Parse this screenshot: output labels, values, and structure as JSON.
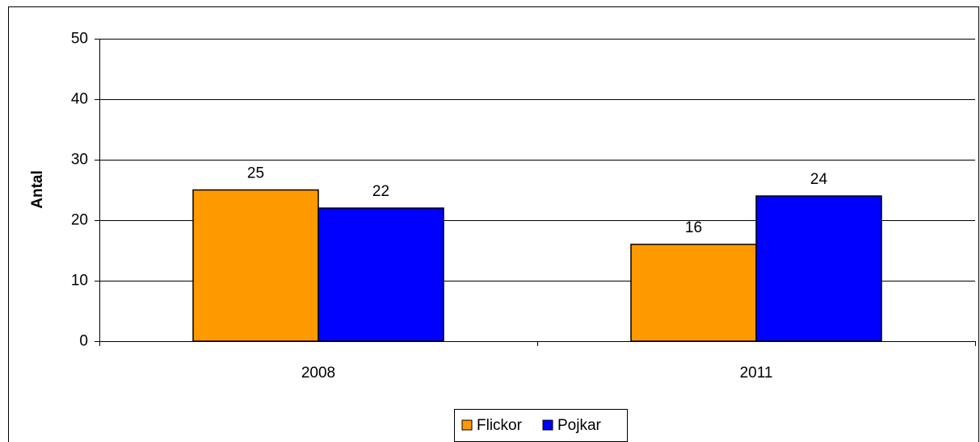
{
  "chart_data": {
    "type": "bar",
    "y_label": "Antal",
    "categories": [
      "2008",
      "2011"
    ],
    "series": [
      {
        "name": "Flickor",
        "color": "#ff9900",
        "values": [
          25,
          16
        ]
      },
      {
        "name": "Pojkar",
        "color": "#0000ff",
        "values": [
          22,
          24
        ]
      }
    ],
    "ylim": [
      0,
      50
    ],
    "yticks": [
      0,
      10,
      20,
      30,
      40,
      50
    ],
    "grid": true,
    "legend": "bottom"
  }
}
